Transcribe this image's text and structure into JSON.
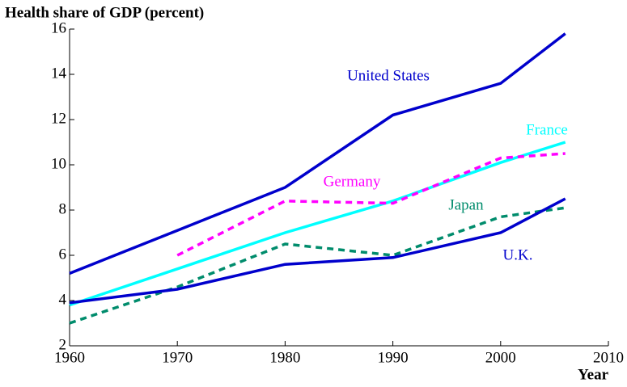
{
  "chart_data": {
    "type": "line",
    "title": "Health share of GDP (percent)",
    "x_label": "Year",
    "x": [
      1960,
      1970,
      1980,
      1990,
      2000,
      2006
    ],
    "series": [
      {
        "name": "United States",
        "color": "#0000cc",
        "dashed": false,
        "values": [
          5.2,
          7.1,
          9.0,
          12.2,
          13.6,
          15.8
        ]
      },
      {
        "name": "France",
        "color": "#00ffff",
        "dashed": false,
        "values": [
          3.8,
          5.4,
          7.0,
          8.4,
          10.1,
          11.0
        ]
      },
      {
        "name": "Germany",
        "color": "#ff00ff",
        "dashed": true,
        "values": [
          null,
          6.0,
          8.4,
          8.3,
          10.3,
          10.5
        ]
      },
      {
        "name": "Japan",
        "color": "#008c6c",
        "dashed": true,
        "values": [
          3.0,
          4.6,
          6.5,
          6.0,
          7.7,
          8.1
        ]
      },
      {
        "name": "U.K.",
        "color": "#0000cc",
        "dashed": false,
        "values": [
          3.9,
          4.5,
          5.6,
          5.9,
          7.0,
          8.5
        ]
      }
    ],
    "xlim": [
      1960,
      2010
    ],
    "xticks": [
      1960,
      1970,
      1980,
      1990,
      2000,
      2010
    ],
    "ylim": [
      2,
      16
    ],
    "yticks": [
      2,
      4,
      6,
      8,
      10,
      12,
      14,
      16
    ]
  }
}
